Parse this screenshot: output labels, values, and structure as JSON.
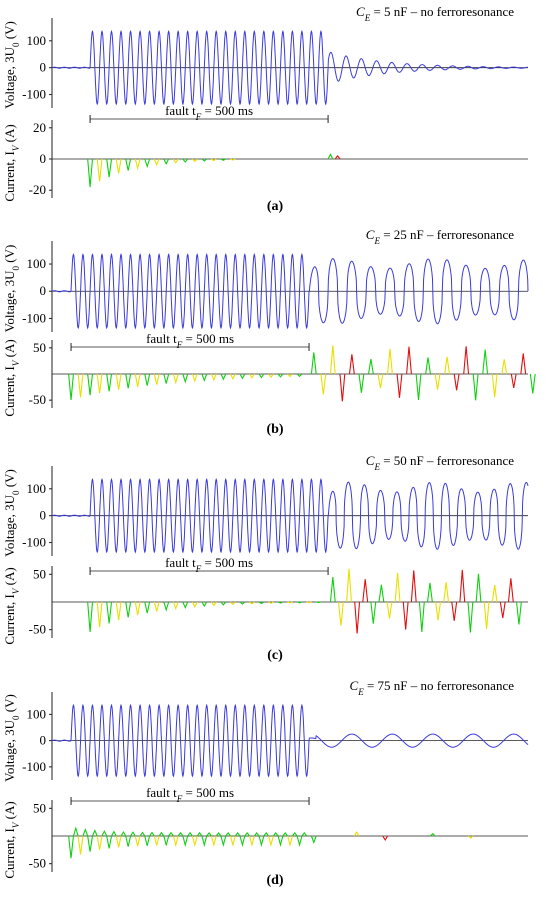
{
  "colors": {
    "voltage": "#3b3bdc",
    "current_green": "#10d010",
    "current_yellow": "#e8e000",
    "current_red": "#e01010",
    "axis": "#222222",
    "fault_bracket": "#222222"
  },
  "chart_data": [
    {
      "type": "line",
      "panel": "a",
      "caption": "(a)",
      "title_main": "C",
      "title_sub": "E",
      "title_rest": " = 5 nF – no ferroresonance",
      "voltage_ylabel_main": "Voltage, 3U",
      "voltage_ylabel_sub": "0",
      "voltage_ylabel_unit": " (V)",
      "voltage_ticks": [
        "100",
        "0",
        "-100"
      ],
      "voltage_tick_values": [
        100,
        0,
        -100
      ],
      "voltage_ylim": [
        -150,
        170
      ],
      "current_ylabel_main": "Current, I",
      "current_ylabel_sub": "V",
      "current_ylabel_unit": " (A)",
      "current_ticks": [
        "20",
        "0",
        "-20"
      ],
      "current_tick_values": [
        20,
        0,
        -20
      ],
      "current_ylim": [
        -25,
        25
      ],
      "fault_label": "fault t",
      "fault_label_sub": "F",
      "fault_label_rest": " = 500 ms",
      "fault_start": 0.08,
      "fault_end": 0.58,
      "fault_cycles": 25,
      "fault_amplitude": 135,
      "post_fault": {
        "pattern": "decay",
        "amplitude": 60,
        "period": 0.032,
        "decay_time": 0.12
      },
      "current": {
        "pattern": "decay",
        "peak": -20,
        "decay_time": 0.09,
        "colors": [
          "current_green",
          "current_yellow"
        ]
      }
    },
    {
      "type": "line",
      "panel": "b",
      "caption": "(b)",
      "title_main": "C",
      "title_sub": "E",
      "title_rest": " = 25 nF – ferroresonance",
      "voltage_ylabel_main": "Voltage, 3U",
      "voltage_ylabel_sub": "0",
      "voltage_ylabel_unit": " (V)",
      "voltage_ticks": [
        "100",
        "0",
        "-100"
      ],
      "voltage_tick_values": [
        100,
        0,
        -100
      ],
      "voltage_ylim": [
        -150,
        170
      ],
      "current_ylabel_main": "Current, I",
      "current_ylabel_sub": "V",
      "current_ylabel_unit": " (A)",
      "current_ticks": [
        "50",
        "-50"
      ],
      "current_tick_values": [
        50,
        -50
      ],
      "current_ylim": [
        -65,
        65
      ],
      "fault_label": "fault t",
      "fault_label_sub": "F",
      "fault_label_rest": " = 500 ms",
      "fault_start": 0.04,
      "fault_end": 0.54,
      "fault_cycles": 25,
      "fault_amplitude": 135,
      "post_fault": {
        "pattern": "ferro",
        "amplitude": 120,
        "period": 0.04
      },
      "current": {
        "pattern": "ferro",
        "peak": 55,
        "decay_time": 0.2,
        "colors": [
          "current_green",
          "current_yellow",
          "current_red"
        ]
      }
    },
    {
      "type": "line",
      "panel": "c",
      "caption": "(c)",
      "title_main": "C",
      "title_sub": "E",
      "title_rest": " = 50 nF – ferroresonance",
      "voltage_ylabel_main": "Voltage, 3U",
      "voltage_ylabel_sub": "0",
      "voltage_ylabel_unit": " (V)",
      "voltage_ticks": [
        "100",
        "0",
        "-100"
      ],
      "voltage_tick_values": [
        100,
        0,
        -100
      ],
      "voltage_ylim": [
        -150,
        170
      ],
      "current_ylabel_main": "Current, I",
      "current_ylabel_sub": "V",
      "current_ylabel_unit": " (A)",
      "current_ticks": [
        "50",
        "-50"
      ],
      "current_tick_values": [
        50,
        -50
      ],
      "current_ylim": [
        -65,
        65
      ],
      "fault_label": "fault t",
      "fault_label_sub": "F",
      "fault_label_rest": " = 500 ms",
      "fault_start": 0.08,
      "fault_end": 0.58,
      "fault_cycles": 25,
      "fault_amplitude": 135,
      "post_fault": {
        "pattern": "ferro",
        "amplitude": 125,
        "period": 0.034
      },
      "current": {
        "pattern": "ferro",
        "peak": 60,
        "decay_time": 0.12,
        "colors": [
          "current_green",
          "current_yellow",
          "current_red"
        ]
      }
    },
    {
      "type": "line",
      "panel": "d",
      "caption": "(d)",
      "title_main": "C",
      "title_sub": "E",
      "title_rest": " = 75 nF – no ferroresonance",
      "voltage_ylabel_main": "Voltage, 3U",
      "voltage_ylabel_sub": "0",
      "voltage_ylabel_unit": " (V)",
      "voltage_ticks": [
        "100",
        "0",
        "-100"
      ],
      "voltage_tick_values": [
        100,
        0,
        -100
      ],
      "voltage_ylim": [
        -150,
        170
      ],
      "current_ylabel_main": "Current, I",
      "current_ylabel_sub": "V",
      "current_ylabel_unit": " (A)",
      "current_ticks": [
        "50",
        "-50"
      ],
      "current_tick_values": [
        50,
        -50
      ],
      "current_ylim": [
        -65,
        65
      ],
      "fault_label": "fault t",
      "fault_label_sub": "F",
      "fault_label_rest": " = 500 ms",
      "fault_start": 0.04,
      "fault_end": 0.54,
      "fault_cycles": 25,
      "fault_amplitude": 135,
      "post_fault": {
        "pattern": "slow",
        "amplitude": 25,
        "period": 0.085
      },
      "current": {
        "pattern": "steady",
        "peak": -40,
        "steady": -16,
        "decay_time": 0.06,
        "colors": [
          "current_green",
          "current_yellow",
          "current_red"
        ]
      }
    }
  ]
}
